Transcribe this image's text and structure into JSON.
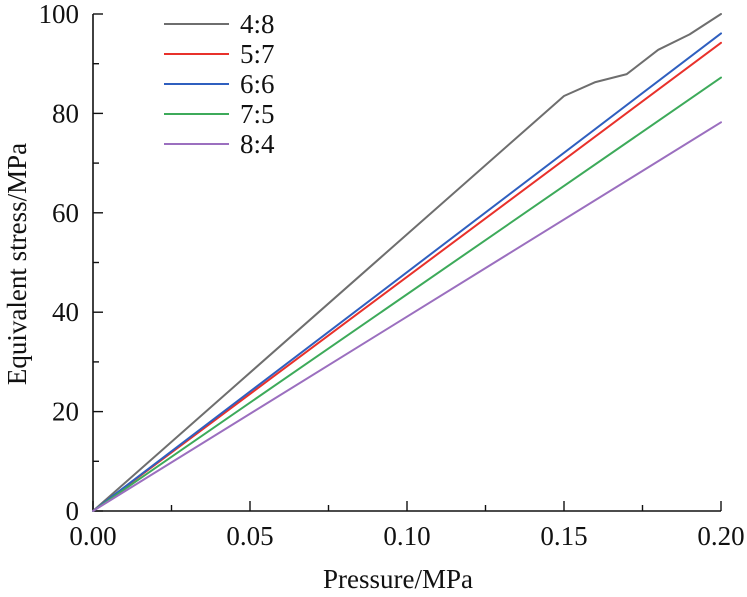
{
  "chart_data": {
    "type": "line",
    "xlabel": "Pressure/MPa",
    "ylabel": "Equivalent stress/MPa",
    "xlim": [
      0,
      0.2
    ],
    "ylim": [
      0,
      100
    ],
    "xticks": [
      0.0,
      0.05,
      0.1,
      0.15,
      0.2
    ],
    "xtick_labels": [
      "0.00",
      "0.05",
      "0.10",
      "0.15",
      "0.20"
    ],
    "xminor": [
      0.025,
      0.075,
      0.125,
      0.175
    ],
    "yticks": [
      0,
      20,
      40,
      60,
      80,
      100
    ],
    "ytick_labels": [
      "0",
      "20",
      "40",
      "60",
      "80",
      "100"
    ],
    "yminor": [
      10,
      30,
      50,
      70,
      90
    ],
    "legend_position": "top-left",
    "series": [
      {
        "name": "4:8",
        "color": "#6e6e6e",
        "x": [
          0,
          0.15,
          0.16,
          0.17,
          0.18,
          0.19,
          0.2
        ],
        "y": [
          0,
          83.5,
          86.3,
          87.9,
          92.8,
          95.9,
          100
        ]
      },
      {
        "name": "5:7",
        "color": "#e8312b",
        "x": [
          0,
          0.2
        ],
        "y": [
          0,
          94.2
        ]
      },
      {
        "name": "6:6",
        "color": "#2f5fbf",
        "x": [
          0,
          0.2
        ],
        "y": [
          0,
          96.1
        ]
      },
      {
        "name": "7:5",
        "color": "#3daa5a",
        "x": [
          0,
          0.2
        ],
        "y": [
          0,
          87.2
        ]
      },
      {
        "name": "8:4",
        "color": "#9b6fbf",
        "x": [
          0,
          0.2
        ],
        "y": [
          0,
          78.2
        ]
      }
    ]
  }
}
